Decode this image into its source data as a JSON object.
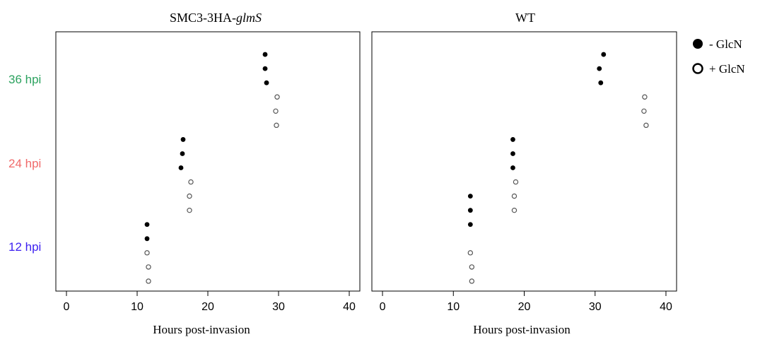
{
  "chart_data": {
    "type": "scatter",
    "row_labels": [
      {
        "text": "36 hpi",
        "color": "#2ca25f"
      },
      {
        "text": "24 hpi",
        "color": "#f06a6a"
      },
      {
        "text": "12 hpi",
        "color": "#3b1ef0"
      }
    ],
    "legend": {
      "placement": "right",
      "entries": [
        {
          "label": "- GlcN",
          "marker": "filled"
        },
        {
          "label": "+ GlcN",
          "marker": "open"
        }
      ]
    },
    "xlim": [
      -1.5,
      41.5
    ],
    "xticks": [
      "0",
      "10",
      "20",
      "30",
      "40"
    ],
    "ylim": [
      0.3,
      18.6
    ],
    "panels": [
      {
        "title_prefix": "SMC3-3HA-",
        "title_italic": "glmS",
        "xlabel": "Hours post-invasion",
        "series": [
          {
            "name": "- GlcN",
            "marker": "filled",
            "points": [
              [
                11.4,
                4
              ],
              [
                11.4,
                5
              ],
              [
                16.2,
                9
              ],
              [
                16.4,
                10
              ],
              [
                16.5,
                11
              ],
              [
                28.3,
                15
              ],
              [
                28.1,
                16
              ],
              [
                28.1,
                17
              ]
            ]
          },
          {
            "name": "+ GlcN",
            "marker": "open",
            "points": [
              [
                11.6,
                1
              ],
              [
                11.6,
                2
              ],
              [
                11.4,
                3
              ],
              [
                17.4,
                6
              ],
              [
                17.4,
                7
              ],
              [
                17.6,
                8
              ],
              [
                29.7,
                12
              ],
              [
                29.6,
                13
              ],
              [
                29.8,
                14
              ]
            ]
          }
        ]
      },
      {
        "title_prefix": "WT",
        "title_italic": "",
        "xlabel": "Hours post-invasion",
        "series": [
          {
            "name": "- GlcN",
            "marker": "filled",
            "points": [
              [
                12.4,
                5
              ],
              [
                12.4,
                6
              ],
              [
                12.4,
                7
              ],
              [
                18.4,
                9
              ],
              [
                18.4,
                10
              ],
              [
                18.4,
                11
              ],
              [
                30.8,
                15
              ],
              [
                30.6,
                16
              ],
              [
                31.2,
                17
              ]
            ]
          },
          {
            "name": "+ GlcN",
            "marker": "open",
            "points": [
              [
                12.6,
                1
              ],
              [
                12.6,
                2
              ],
              [
                12.4,
                3
              ],
              [
                18.6,
                6
              ],
              [
                18.6,
                7
              ],
              [
                18.8,
                8
              ],
              [
                37.2,
                12
              ],
              [
                36.9,
                13
              ],
              [
                37.0,
                14
              ]
            ]
          }
        ]
      }
    ]
  }
}
